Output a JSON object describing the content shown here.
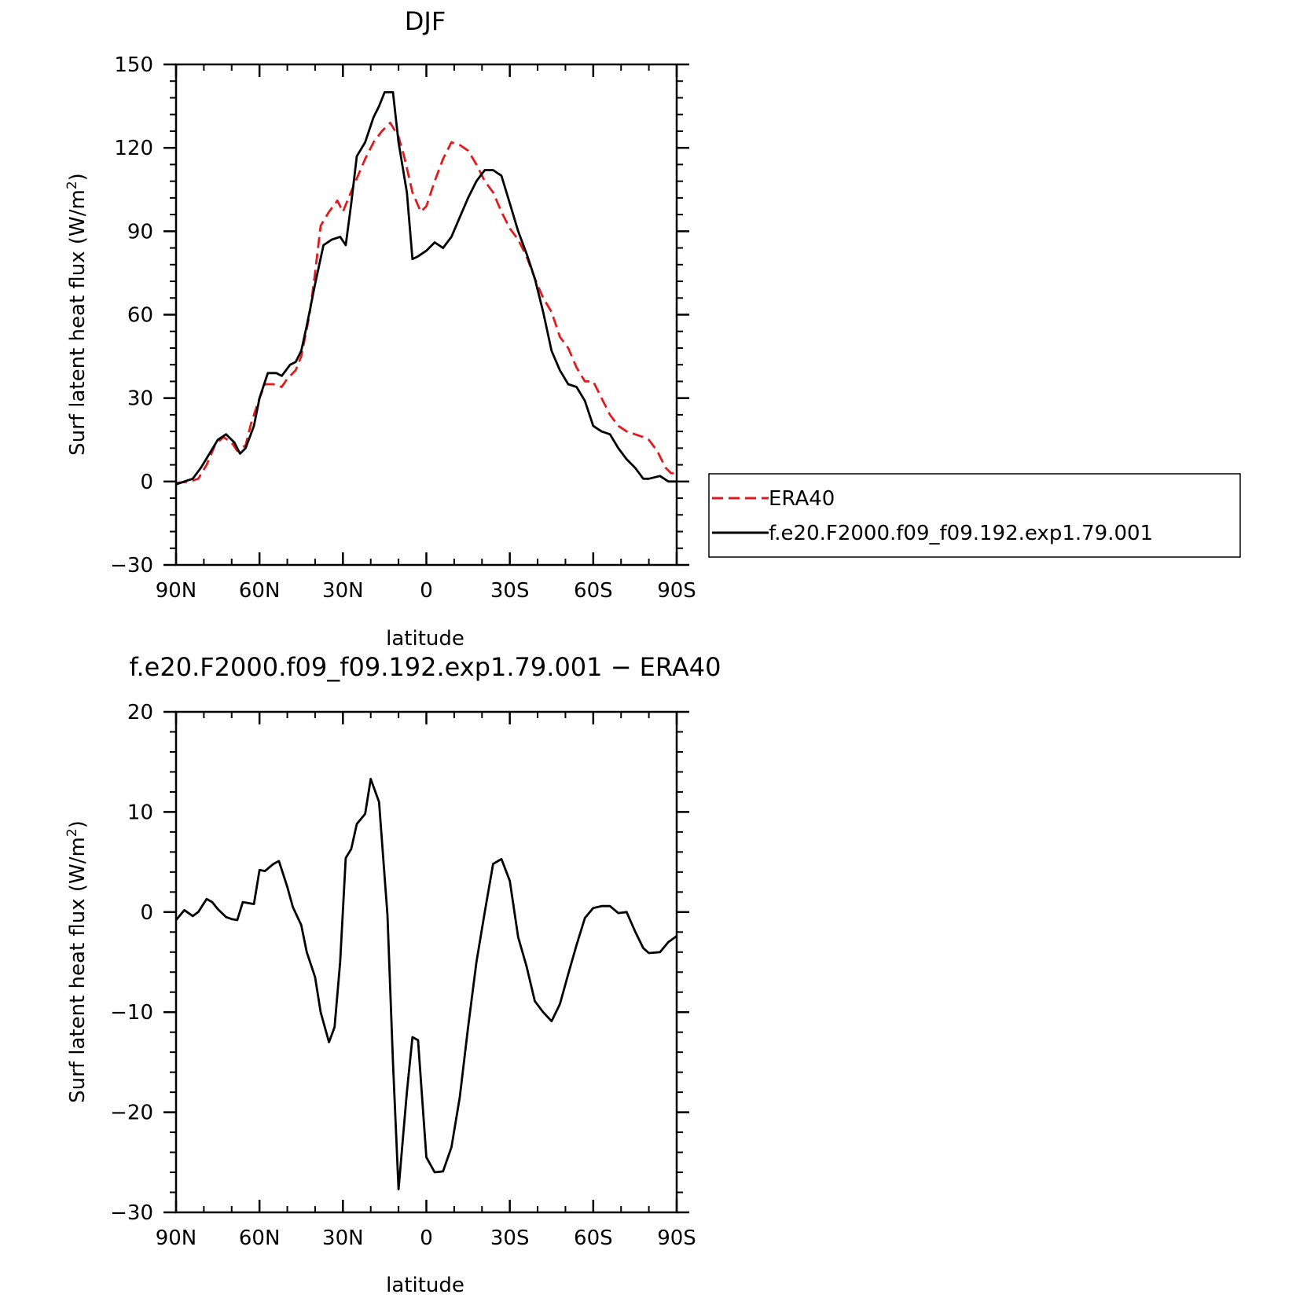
{
  "figure": {
    "background": "#ffffff"
  },
  "chart_data": [
    {
      "type": "line",
      "title": "DJF",
      "xlabel": "latitude",
      "ylabel": "Surf latent heat flux (W/m",
      "ylabel_sup": "2",
      "ylabel_end": ")",
      "xlim": [
        -90,
        90
      ],
      "ylim": [
        -30,
        150
      ],
      "x_ticks": [
        -90,
        -60,
        -30,
        0,
        30,
        60,
        90
      ],
      "x_tick_labels": [
        "90N",
        "60N",
        "30N",
        "0",
        "30S",
        "60S",
        "90S"
      ],
      "y_ticks": [
        -30,
        0,
        30,
        60,
        90,
        120,
        150
      ],
      "y_tick_labels": [
        "−30",
        "0",
        "30",
        "60",
        "90",
        "120",
        "150"
      ],
      "grid": false,
      "legend_position": "right",
      "series": [
        {
          "name": "ERA40",
          "color": "#e31a1c",
          "dash": true,
          "x": [
            -90,
            -85,
            -82,
            -79,
            -76,
            -73,
            -70,
            -68,
            -65,
            -63,
            -60,
            -58,
            -55,
            -52,
            -50,
            -47,
            -45,
            -42,
            -40,
            -38,
            -35,
            -32,
            -30,
            -28,
            -25,
            -22,
            -19,
            -16,
            -13,
            -10,
            -8,
            -5,
            -2,
            0,
            3,
            6,
            9,
            12,
            15,
            18,
            21,
            24,
            27,
            30,
            33,
            36,
            39,
            42,
            45,
            48,
            51,
            54,
            57,
            60,
            63,
            66,
            69,
            72,
            75,
            78,
            80,
            83,
            86,
            88,
            90
          ],
          "values": [
            -0.5,
            0,
            1,
            6,
            13,
            16,
            14,
            11,
            13,
            21,
            30,
            35,
            35,
            34,
            37,
            40,
            45,
            60,
            75,
            92,
            97,
            101,
            97,
            102,
            109,
            116,
            122,
            126,
            129,
            124,
            117,
            104,
            97,
            99,
            108,
            116,
            122,
            121,
            119,
            114,
            108,
            104,
            97,
            91,
            87,
            81,
            73,
            66,
            61,
            52,
            48,
            41,
            36,
            36,
            30,
            24,
            20,
            18,
            17,
            16,
            15,
            11,
            5,
            3,
            3
          ]
        },
        {
          "name": "f.e20.F2000.f09_f09.192.exp1.79.001",
          "color": "#000000",
          "dash": false,
          "x": [
            -90,
            -87,
            -84,
            -81,
            -78,
            -75,
            -72,
            -69,
            -67,
            -65,
            -62,
            -60,
            -57,
            -54,
            -52,
            -49,
            -47,
            -45,
            -43,
            -40,
            -37,
            -34,
            -31,
            -29,
            -27,
            -25,
            -22,
            -19,
            -17,
            -15,
            -12,
            -10,
            -7,
            -5,
            -3,
            0,
            3,
            6,
            9,
            12,
            15,
            18,
            21,
            24,
            27,
            30,
            33,
            36,
            39,
            42,
            45,
            48,
            51,
            54,
            57,
            60,
            63,
            66,
            69,
            72,
            75,
            78,
            80,
            84,
            87,
            90
          ],
          "values": [
            -1,
            0,
            1,
            5,
            10,
            15,
            17,
            14,
            10,
            12,
            20,
            30,
            39,
            39,
            38,
            42,
            43,
            47,
            56,
            71,
            85,
            87,
            88,
            85,
            100,
            117,
            122,
            131,
            135,
            140,
            140,
            122,
            104,
            80,
            81,
            83,
            86,
            84,
            88,
            95,
            102,
            108,
            112,
            112,
            110,
            100,
            90,
            82,
            73,
            61,
            47,
            40,
            35,
            34,
            29,
            20,
            18,
            17,
            12,
            8,
            5,
            1,
            1,
            2,
            0,
            0
          ]
        }
      ]
    },
    {
      "type": "line",
      "title": "f.e20.F2000.f09_f09.192.exp1.79.001 − ERA40",
      "xlabel": "latitude",
      "ylabel": "Surf latent heat flux (W/m",
      "ylabel_sup": "2",
      "ylabel_end": ")",
      "xlim": [
        -90,
        90
      ],
      "ylim": [
        -30,
        20
      ],
      "x_ticks": [
        -90,
        -60,
        -30,
        0,
        30,
        60,
        90
      ],
      "x_tick_labels": [
        "90N",
        "60N",
        "30N",
        "0",
        "30S",
        "60S",
        "90S"
      ],
      "y_ticks": [
        -30,
        -20,
        -10,
        0,
        10,
        20
      ],
      "y_tick_labels": [
        "−30",
        "−20",
        "−10",
        "0",
        "10",
        "20"
      ],
      "grid": false,
      "series": [
        {
          "color": "#000000",
          "dash": false,
          "x": [
            -90,
            -87,
            -84,
            -82,
            -79,
            -77,
            -75,
            -72,
            -70,
            -68,
            -66,
            -62,
            -60,
            -58,
            -55,
            -53,
            -50,
            -48,
            -45,
            -43,
            -40,
            -38,
            -35,
            -33,
            -31,
            -29,
            -27,
            -25,
            -22,
            -20,
            -17,
            -14,
            -12,
            -10,
            -7,
            -5,
            -3,
            0,
            3,
            6,
            9,
            12,
            15,
            18,
            21,
            24,
            27,
            30,
            33,
            36,
            39,
            42,
            45,
            48,
            51,
            54,
            57,
            60,
            63,
            66,
            69,
            72,
            75,
            78,
            80,
            84,
            87,
            90
          ],
          "values": [
            -0.8,
            0.2,
            -0.4,
            0,
            1.3,
            1,
            0.3,
            -0.5,
            -0.7,
            -0.8,
            1,
            0.8,
            4.2,
            4.1,
            4.8,
            5.1,
            2.5,
            0.5,
            -1.3,
            -4,
            -6.5,
            -10,
            -13,
            -11.5,
            -5,
            5.4,
            6.3,
            8.8,
            9.8,
            13.3,
            11,
            -0.3,
            -15,
            -27.7,
            -18,
            -12.5,
            -12.8,
            -24.5,
            -26,
            -25.9,
            -23.5,
            -18.5,
            -11.5,
            -5,
            0,
            4.8,
            5.3,
            3.1,
            -2.5,
            -5.4,
            -8.9,
            -10,
            -10.9,
            -9.2,
            -6.2,
            -3.3,
            -0.6,
            0.4,
            0.6,
            0.6,
            -0.1,
            0,
            -1.9,
            -3.6,
            -4.1,
            -4,
            -3,
            -2.4
          ]
        }
      ]
    }
  ]
}
